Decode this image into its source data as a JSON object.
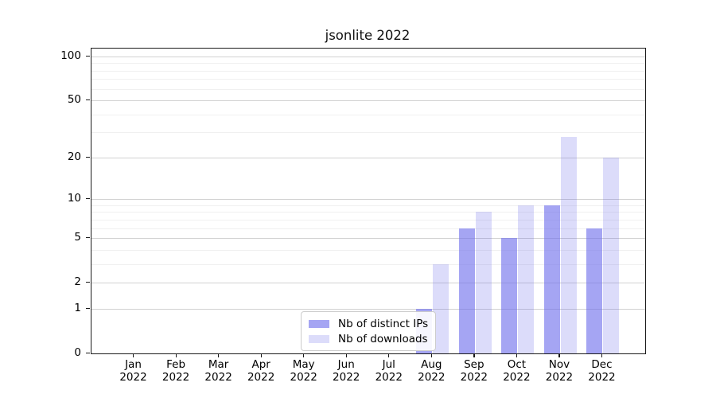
{
  "chart_data": {
    "type": "bar",
    "title": "jsonlite 2022",
    "categories": [
      "Jan 2022",
      "Feb 2022",
      "Mar 2022",
      "Apr 2022",
      "May 2022",
      "Jun 2022",
      "Jul 2022",
      "Aug 2022",
      "Sep 2022",
      "Oct 2022",
      "Nov 2022",
      "Dec 2022"
    ],
    "series": [
      {
        "name": "Nb of distinct IPs",
        "color": "rgba(110,110,235,0.62)",
        "approx_hex": "#a8a8f3",
        "values": [
          0,
          0,
          0,
          0,
          0,
          0,
          0,
          1,
          6,
          5,
          9,
          6
        ]
      },
      {
        "name": "Nb of downloads",
        "color": "rgba(110,110,235,0.24)",
        "approx_hex": "#dcdcfa",
        "values": [
          0,
          0,
          0,
          0,
          0,
          0,
          0,
          3,
          8,
          9,
          28,
          20
        ]
      }
    ],
    "y_axis": {
      "scale": "log1p",
      "major_ticks": [
        0,
        1,
        2,
        5,
        10,
        20,
        50,
        100
      ],
      "minor_ticks": [
        3,
        4,
        6,
        7,
        8,
        9,
        30,
        40,
        60,
        70,
        80,
        90
      ],
      "range": [
        0,
        100
      ]
    },
    "x_axis": {
      "tick_label_format": "month newline year"
    },
    "legend": {
      "position": "inside-bottom-center"
    },
    "grid": {
      "orientation": "horizontal",
      "major_color": "#d2d2d2",
      "minor_color": "#f0f0f0"
    }
  }
}
